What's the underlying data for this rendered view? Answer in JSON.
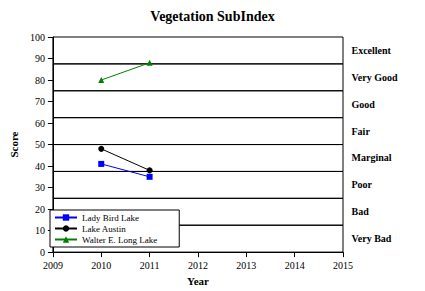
{
  "chart_data": {
    "type": "line",
    "title": "Vegetation SubIndex",
    "x_label": "Year",
    "y_label": "Score",
    "xlim": [
      2009,
      2015
    ],
    "xticks": [
      2009,
      2010,
      2011,
      2012,
      2013,
      2014,
      2015
    ],
    "ylim": [
      0,
      100
    ],
    "yticks": [
      0,
      10,
      20,
      30,
      40,
      50,
      60,
      70,
      80,
      90,
      100
    ],
    "grid": false,
    "legend": "lower left",
    "series": [
      {
        "name": "Lady Bird Lake",
        "color": "#0000ff",
        "marker": "square",
        "x": [
          2010,
          2011
        ],
        "values": [
          41,
          35
        ]
      },
      {
        "name": "Lake Austin",
        "color": "#000000",
        "marker": "circle",
        "x": [
          2010,
          2011
        ],
        "values": [
          48,
          38
        ]
      },
      {
        "name": "Walter E. Long Lake",
        "color": "#008000",
        "marker": "triangle",
        "x": [
          2010,
          2011
        ],
        "values": [
          80,
          88
        ]
      }
    ],
    "bands": [
      {
        "label": "Excellent",
        "from": 87.5,
        "to": 100
      },
      {
        "label": "Very Good",
        "from": 75,
        "to": 87.5
      },
      {
        "label": "Good",
        "from": 62.5,
        "to": 75
      },
      {
        "label": "Fair",
        "from": 50,
        "to": 62.5
      },
      {
        "label": "Marginal",
        "from": 37.5,
        "to": 50
      },
      {
        "label": "Poor",
        "from": 25,
        "to": 37.5
      },
      {
        "label": "Bad",
        "from": 12.5,
        "to": 25
      },
      {
        "label": "Very Bad",
        "from": 0,
        "to": 12.5
      }
    ]
  }
}
